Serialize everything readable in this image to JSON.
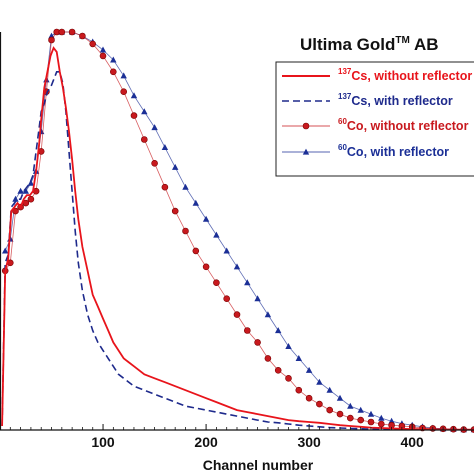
{
  "chart_data": {
    "type": "line",
    "title": "Ultima Gold",
    "title_sup": "TM",
    "title_suffix": " AB",
    "xlabel": "Channel number",
    "ylabel": "",
    "xlim": [
      0,
      460
    ],
    "ylim": [
      0,
      1
    ],
    "x_ticks": [
      100,
      200,
      300,
      400
    ],
    "x_tick_labels": [
      "100",
      "200",
      "300",
      "400"
    ],
    "grid": false,
    "legend_position": "top-right",
    "series": [
      {
        "name": "Cs, without reflector",
        "name_sup": "137",
        "color": "#e8141b",
        "style": "solid",
        "marker": "none",
        "x": [
          2,
          5,
          8,
          11,
          14,
          17,
          20,
          23,
          26,
          29,
          32,
          35,
          38,
          40,
          43,
          46,
          49,
          52,
          55,
          58,
          61,
          64,
          67,
          70,
          73,
          76,
          80,
          85,
          90,
          95,
          100,
          105,
          110,
          115,
          120,
          130,
          140,
          150,
          160,
          170,
          180,
          190,
          200,
          210,
          220,
          230,
          240,
          250,
          260,
          270,
          280,
          290,
          300,
          310,
          320,
          330,
          340,
          350,
          360,
          370,
          380,
          390,
          400,
          410,
          420,
          430,
          440,
          450,
          460
        ],
        "y": [
          0.01,
          0.4,
          0.43,
          0.55,
          0.56,
          0.57,
          0.56,
          0.58,
          0.59,
          0.59,
          0.6,
          0.65,
          0.72,
          0.78,
          0.86,
          0.9,
          0.94,
          0.96,
          0.95,
          0.9,
          0.86,
          0.81,
          0.75,
          0.68,
          0.6,
          0.53,
          0.46,
          0.4,
          0.34,
          0.31,
          0.28,
          0.25,
          0.22,
          0.2,
          0.18,
          0.16,
          0.14,
          0.13,
          0.12,
          0.11,
          0.1,
          0.09,
          0.08,
          0.07,
          0.06,
          0.05,
          0.045,
          0.04,
          0.035,
          0.03,
          0.025,
          0.022,
          0.02,
          0.018,
          0.015,
          0.012,
          0.01,
          0.008,
          0.006,
          0.005,
          0.004,
          0.003,
          0.002,
          0.002,
          0.001,
          0.001,
          0.001,
          0.001,
          0.001
        ]
      },
      {
        "name": "Cs, with reflector",
        "name_sup": "137",
        "color": "#1e2a8c",
        "style": "dashed",
        "marker": "none",
        "x": [
          2,
          5,
          8,
          11,
          14,
          17,
          20,
          23,
          26,
          29,
          32,
          35,
          38,
          40,
          43,
          46,
          49,
          52,
          55,
          58,
          61,
          64,
          67,
          70,
          73,
          76,
          80,
          85,
          90,
          95,
          100,
          105,
          110,
          115,
          120,
          130,
          140,
          150,
          160,
          170,
          180,
          190,
          200,
          210,
          220,
          230,
          240,
          250,
          260,
          270,
          280,
          290,
          300,
          310,
          320,
          330,
          340,
          350,
          360,
          370,
          380,
          390,
          400,
          410,
          420,
          430,
          440,
          450,
          460
        ],
        "y": [
          0.01,
          0.42,
          0.44,
          0.56,
          0.57,
          0.58,
          0.58,
          0.6,
          0.61,
          0.62,
          0.64,
          0.7,
          0.76,
          0.8,
          0.82,
          0.85,
          0.86,
          0.88,
          0.9,
          0.9,
          0.87,
          0.8,
          0.7,
          0.6,
          0.5,
          0.42,
          0.35,
          0.29,
          0.25,
          0.22,
          0.2,
          0.18,
          0.16,
          0.14,
          0.13,
          0.11,
          0.1,
          0.09,
          0.08,
          0.07,
          0.06,
          0.055,
          0.05,
          0.045,
          0.04,
          0.035,
          0.03,
          0.025,
          0.02,
          0.018,
          0.015,
          0.012,
          0.01,
          0.008,
          0.006,
          0.005,
          0.004,
          0.003,
          0.002,
          0.002,
          0.001,
          0.001,
          0.001,
          0.001,
          0.001,
          0.001,
          0.001,
          0.001,
          0.001
        ]
      },
      {
        "name": "Co, without reflector",
        "name_sup": "60",
        "color": "#c8191e",
        "style": "thin-solid",
        "marker": "circle",
        "x": [
          5,
          10,
          15,
          20,
          25,
          30,
          35,
          40,
          45,
          50,
          55,
          60,
          70,
          80,
          90,
          100,
          110,
          120,
          130,
          140,
          150,
          160,
          170,
          180,
          190,
          200,
          210,
          220,
          230,
          240,
          250,
          260,
          270,
          280,
          290,
          300,
          310,
          320,
          330,
          340,
          350,
          360,
          370,
          380,
          390,
          400,
          410,
          420,
          430,
          440,
          450,
          460
        ],
        "y": [
          0.4,
          0.42,
          0.55,
          0.56,
          0.57,
          0.58,
          0.6,
          0.7,
          0.85,
          0.98,
          1.0,
          1.0,
          1.0,
          0.99,
          0.97,
          0.94,
          0.9,
          0.85,
          0.79,
          0.73,
          0.67,
          0.61,
          0.55,
          0.5,
          0.45,
          0.41,
          0.37,
          0.33,
          0.29,
          0.25,
          0.22,
          0.18,
          0.15,
          0.13,
          0.1,
          0.08,
          0.065,
          0.05,
          0.04,
          0.03,
          0.025,
          0.02,
          0.015,
          0.012,
          0.01,
          0.008,
          0.005,
          0.004,
          0.003,
          0.002,
          0.001,
          0.001
        ]
      },
      {
        "name": "Co, with reflector",
        "name_sup": "60",
        "color": "#1b2f96",
        "style": "thin-solid",
        "marker": "triangle",
        "x": [
          5,
          10,
          15,
          20,
          25,
          30,
          35,
          40,
          45,
          50,
          55,
          60,
          70,
          80,
          90,
          100,
          110,
          120,
          130,
          140,
          150,
          160,
          170,
          180,
          190,
          200,
          210,
          220,
          230,
          240,
          250,
          260,
          270,
          280,
          290,
          300,
          310,
          320,
          330,
          340,
          350,
          360,
          370,
          380,
          390,
          400,
          410,
          420,
          430,
          440,
          450,
          460
        ],
        "y": [
          0.45,
          0.48,
          0.58,
          0.6,
          0.6,
          0.62,
          0.65,
          0.75,
          0.88,
          0.99,
          1.0,
          1.0,
          1.0,
          0.99,
          0.975,
          0.955,
          0.93,
          0.89,
          0.84,
          0.8,
          0.76,
          0.71,
          0.66,
          0.61,
          0.57,
          0.53,
          0.49,
          0.45,
          0.41,
          0.37,
          0.33,
          0.29,
          0.25,
          0.21,
          0.18,
          0.15,
          0.12,
          0.1,
          0.08,
          0.06,
          0.05,
          0.04,
          0.03,
          0.022,
          0.016,
          0.012,
          0.008,
          0.005,
          0.003,
          0.002,
          0.001,
          0.001
        ]
      }
    ]
  }
}
